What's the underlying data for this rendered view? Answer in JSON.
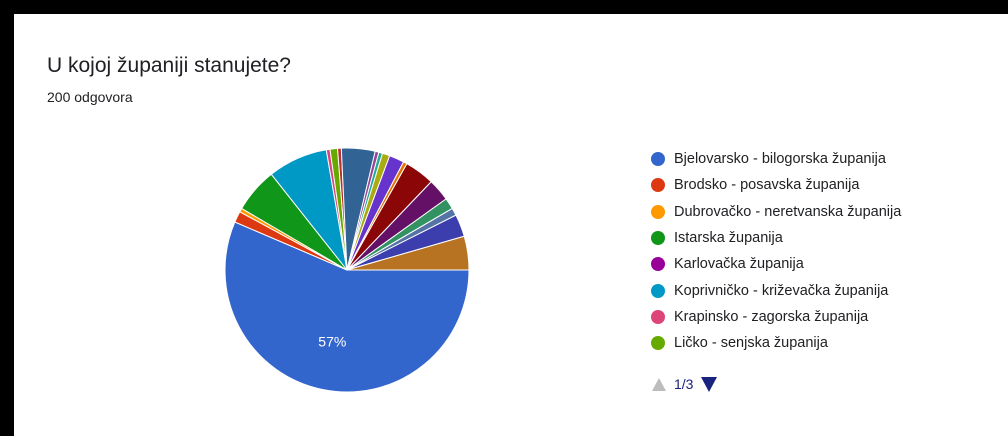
{
  "question": {
    "title": "U kojoj županiji stanujete?",
    "responses": "200 odgovora"
  },
  "chart_data": {
    "type": "pie",
    "slices": [
      {
        "label": "Bjelovarsko - bilogorska županija",
        "value": 57,
        "color": "#3366cc",
        "display_label": "57%"
      },
      {
        "label": "Brodsko - posavska županija",
        "value": 1.5,
        "color": "#dc3912",
        "display_label": ""
      },
      {
        "label": "Dubrovačko - neretvanska županija",
        "value": 0.5,
        "color": "#ff9900",
        "display_label": ""
      },
      {
        "label": "Istarska županija",
        "value": 6,
        "color": "#109618",
        "display_label": ""
      },
      {
        "label": "Karlovačka županija",
        "value": 0,
        "color": "#990099",
        "display_label": ""
      },
      {
        "label": "Koprivničko - križevačka županija",
        "value": 8,
        "color": "#0099c6",
        "display_label": ""
      },
      {
        "label": "Krapinsko - zagorska županija",
        "value": 0.5,
        "color": "#dd4477",
        "display_label": ""
      },
      {
        "label": "Ličko - senjska županija",
        "value": 1,
        "color": "#66aa00",
        "display_label": ""
      },
      {
        "label": "",
        "value": 0.5,
        "color": "#b82e2e",
        "display_label": ""
      },
      {
        "label": "",
        "value": 4.5,
        "color": "#316395",
        "display_label": ""
      },
      {
        "label": "",
        "value": 0.5,
        "color": "#994499",
        "display_label": ""
      },
      {
        "label": "",
        "value": 0.5,
        "color": "#22aa99",
        "display_label": ""
      },
      {
        "label": "",
        "value": 1,
        "color": "#aaaa11",
        "display_label": ""
      },
      {
        "label": "",
        "value": 2,
        "color": "#6633cc",
        "display_label": ""
      },
      {
        "label": "",
        "value": 0.5,
        "color": "#e67300",
        "display_label": ""
      },
      {
        "label": "",
        "value": 4,
        "color": "#8b0707",
        "display_label": ""
      },
      {
        "label": "",
        "value": 3,
        "color": "#651067",
        "display_label": ""
      },
      {
        "label": "",
        "value": 1.5,
        "color": "#329262",
        "display_label": ""
      },
      {
        "label": "",
        "value": 1,
        "color": "#5574a6",
        "display_label": ""
      },
      {
        "label": "",
        "value": 3,
        "color": "#3b3eac",
        "display_label": ""
      },
      {
        "label": "",
        "value": 4.5,
        "color": "#b77322",
        "display_label": ""
      }
    ]
  },
  "legend": {
    "items": [
      {
        "label": "Bjelovarsko - bilogorska županija",
        "color": "#3366cc"
      },
      {
        "label": "Brodsko - posavska županija",
        "color": "#dc3912"
      },
      {
        "label": "Dubrovačko - neretvanska županija",
        "color": "#ff9900"
      },
      {
        "label": "Istarska županija",
        "color": "#109618"
      },
      {
        "label": "Karlovačka županija",
        "color": "#990099"
      },
      {
        "label": "Koprivničko - križevačka županija",
        "color": "#0099c6"
      },
      {
        "label": "Krapinsko - zagorska županija",
        "color": "#dd4477"
      },
      {
        "label": "Ličko - senjska županija",
        "color": "#66aa00"
      }
    ],
    "page_indicator": "1/3"
  }
}
